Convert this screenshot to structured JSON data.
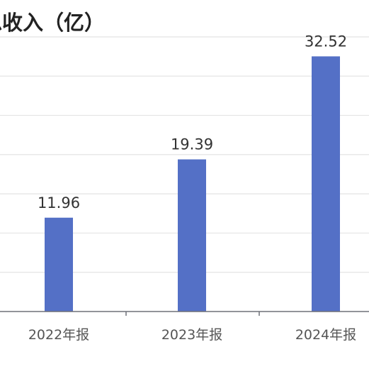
{
  "chart_data": {
    "type": "bar",
    "title": "总收入（亿）",
    "categories": [
      "2022年报",
      "2023年报",
      "2024年报"
    ],
    "values": [
      11.96,
      19.39,
      32.52
    ],
    "value_labels": [
      "11.96",
      "19.39",
      "32.52"
    ],
    "ylim": [
      0,
      35
    ],
    "grid": true,
    "legend": "none",
    "colors": {
      "bar": "#5470c6",
      "grid": "#e4e4e4",
      "axis": "#6e7079"
    }
  }
}
